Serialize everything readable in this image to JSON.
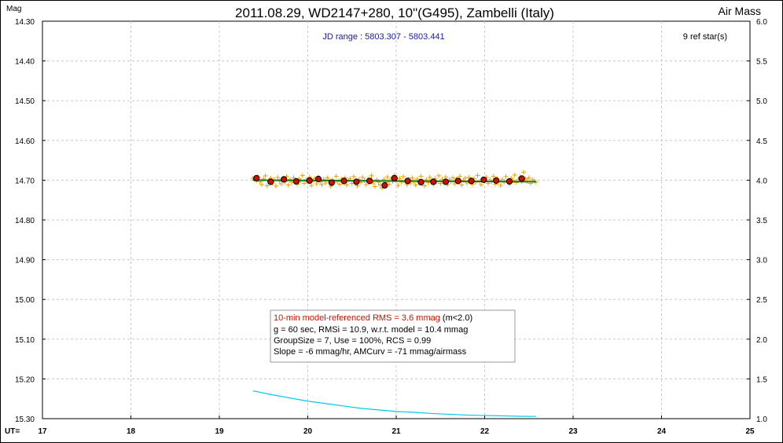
{
  "chart_data": {
    "type": "scatter",
    "title": "2011.08.29, WD2147+280, 10\"(G495), Zambelli (Italy)",
    "ylabel": "Mag",
    "y2label": "Air Mass",
    "xlabel": "UT=",
    "jd_range": "JD range : 5803.307 - 5803.441",
    "ref_stars": "9 ref star(s)",
    "xlim": [
      17,
      25
    ],
    "ylim": [
      14.3,
      15.3
    ],
    "y2lim": [
      1.0,
      6.0
    ],
    "x_ticks": [
      "17",
      "18",
      "19",
      "20",
      "21",
      "22",
      "23",
      "24",
      "25"
    ],
    "y_ticks": [
      "14.30",
      "14.40",
      "14.50",
      "14.60",
      "14.70",
      "14.80",
      "14.90",
      "15.00",
      "15.10",
      "15.20",
      "15.30"
    ],
    "y2_ticks": [
      "6.0",
      "5.5",
      "5.0",
      "4.5",
      "4.0",
      "3.5",
      "3.0",
      "2.5",
      "2.0",
      "1.5",
      "1.0"
    ],
    "grid": true,
    "stats": {
      "line1_red": "10-min model-referenced RMS = 3.6 mmag",
      "line1_black": " (m<2.0)",
      "line2": "g = 60 sec, RMSi = 10.9, w.r.t. model = 10.4 mmag",
      "line3": "GroupSize = 7, Use = 100%, RCS = 0.99",
      "line4": "Slope = -6 mmag/hr, AMCurv = -71 mmag/airmass"
    },
    "series": [
      {
        "kind": "individual",
        "color": "#e8a000",
        "points": [
          [
            19.38,
            14.695
          ],
          [
            19.4,
            14.698
          ],
          [
            19.42,
            14.701
          ],
          [
            19.44,
            14.692
          ],
          [
            19.46,
            14.704
          ],
          [
            19.48,
            14.711
          ],
          [
            19.5,
            14.697
          ],
          [
            19.52,
            14.689
          ],
          [
            19.54,
            14.714
          ],
          [
            19.56,
            14.7
          ],
          [
            19.58,
            14.695
          ],
          [
            19.6,
            14.707
          ],
          [
            19.62,
            14.699
          ],
          [
            19.64,
            14.715
          ],
          [
            19.66,
            14.693
          ],
          [
            19.68,
            14.702
          ],
          [
            19.7,
            14.709
          ],
          [
            19.72,
            14.696
          ],
          [
            19.74,
            14.704
          ],
          [
            19.76,
            14.691
          ],
          [
            19.78,
            14.712
          ],
          [
            19.8,
            14.698
          ],
          [
            19.82,
            14.706
          ],
          [
            19.84,
            14.694
          ],
          [
            19.86,
            14.703
          ],
          [
            19.88,
            14.71
          ],
          [
            19.9,
            14.697
          ],
          [
            19.92,
            14.701
          ],
          [
            19.94,
            14.688
          ],
          [
            19.96,
            14.708
          ],
          [
            19.98,
            14.699
          ],
          [
            20.0,
            14.705
          ],
          [
            20.02,
            14.692
          ],
          [
            20.04,
            14.713
          ],
          [
            20.06,
            14.7
          ],
          [
            20.08,
            14.696
          ],
          [
            20.1,
            14.709
          ],
          [
            20.12,
            14.693
          ],
          [
            20.14,
            14.704
          ],
          [
            20.16,
            14.711
          ],
          [
            20.18,
            14.698
          ],
          [
            20.2,
            14.707
          ],
          [
            20.22,
            14.694
          ],
          [
            20.24,
            14.702
          ],
          [
            20.26,
            14.715
          ],
          [
            20.28,
            14.699
          ],
          [
            20.3,
            14.706
          ],
          [
            20.32,
            14.69
          ],
          [
            20.34,
            14.703
          ],
          [
            20.36,
            14.71
          ],
          [
            20.38,
            14.697
          ],
          [
            20.4,
            14.705
          ],
          [
            20.42,
            14.694
          ],
          [
            20.44,
            14.712
          ],
          [
            20.46,
            14.7
          ],
          [
            20.48,
            14.696
          ],
          [
            20.5,
            14.708
          ],
          [
            20.52,
            14.691
          ],
          [
            20.54,
            14.703
          ],
          [
            20.56,
            14.714
          ],
          [
            20.58,
            14.698
          ],
          [
            20.6,
            14.706
          ],
          [
            20.62,
            14.693
          ],
          [
            20.64,
            14.701
          ],
          [
            20.66,
            14.711
          ],
          [
            20.68,
            14.697
          ],
          [
            20.7,
            14.704
          ],
          [
            20.72,
            14.689
          ],
          [
            20.74,
            14.707
          ],
          [
            20.76,
            14.716
          ],
          [
            20.78,
            14.699
          ],
          [
            20.8,
            14.705
          ],
          [
            20.82,
            14.712
          ],
          [
            20.84,
            14.72
          ],
          [
            20.86,
            14.698
          ],
          [
            20.88,
            14.706
          ],
          [
            20.9,
            14.692
          ],
          [
            20.92,
            14.71
          ],
          [
            20.94,
            14.697
          ],
          [
            20.96,
            14.703
          ],
          [
            20.98,
            14.688
          ],
          [
            21.0,
            14.701
          ],
          [
            21.02,
            14.713
          ],
          [
            21.04,
            14.696
          ],
          [
            21.06,
            14.705
          ],
          [
            21.08,
            14.691
          ],
          [
            21.1,
            14.702
          ],
          [
            21.12,
            14.711
          ],
          [
            21.14,
            14.698
          ],
          [
            21.16,
            14.707
          ],
          [
            21.18,
            14.694
          ],
          [
            21.2,
            14.703
          ],
          [
            21.22,
            14.712
          ],
          [
            21.24,
            14.697
          ],
          [
            21.26,
            14.705
          ],
          [
            21.28,
            14.69
          ],
          [
            21.3,
            14.702
          ],
          [
            21.32,
            14.714
          ],
          [
            21.34,
            14.699
          ],
          [
            21.36,
            14.706
          ],
          [
            21.38,
            14.693
          ],
          [
            21.4,
            14.701
          ],
          [
            21.42,
            14.71
          ],
          [
            21.44,
            14.696
          ],
          [
            21.46,
            14.704
          ],
          [
            21.48,
            14.689
          ],
          [
            21.5,
            14.708
          ],
          [
            21.52,
            14.698
          ],
          [
            21.54,
            14.705
          ],
          [
            21.56,
            14.692
          ],
          [
            21.58,
            14.711
          ],
          [
            21.6,
            14.699
          ],
          [
            21.62,
            14.703
          ],
          [
            21.64,
            14.694
          ],
          [
            21.66,
            14.709
          ],
          [
            21.68,
            14.697
          ],
          [
            21.7,
            14.704
          ],
          [
            21.72,
            14.69
          ],
          [
            21.74,
            14.712
          ],
          [
            21.76,
            14.7
          ],
          [
            21.78,
            14.695
          ],
          [
            21.8,
            14.707
          ],
          [
            21.82,
            14.693
          ],
          [
            21.84,
            14.702
          ],
          [
            21.86,
            14.71
          ],
          [
            21.88,
            14.696
          ],
          [
            21.9,
            14.705
          ],
          [
            21.92,
            14.688
          ],
          [
            21.94,
            14.703
          ],
          [
            21.96,
            14.711
          ],
          [
            21.98,
            14.697
          ],
          [
            22.0,
            14.701
          ],
          [
            22.02,
            14.693
          ],
          [
            22.04,
            14.708
          ],
          [
            22.06,
            14.699
          ],
          [
            22.08,
            14.704
          ],
          [
            22.1,
            14.69
          ],
          [
            22.12,
            14.71
          ],
          [
            22.14,
            14.696
          ],
          [
            22.16,
            14.702
          ],
          [
            22.18,
            14.713
          ],
          [
            22.2,
            14.698
          ],
          [
            22.22,
            14.705
          ],
          [
            22.24,
            14.691
          ],
          [
            22.26,
            14.703
          ],
          [
            22.28,
            14.709
          ],
          [
            22.3,
            14.695
          ],
          [
            22.32,
            14.701
          ],
          [
            22.34,
            14.687
          ],
          [
            22.36,
            14.706
          ],
          [
            22.38,
            14.698
          ],
          [
            22.4,
            14.692
          ],
          [
            22.42,
            14.704
          ],
          [
            22.44,
            14.68
          ],
          [
            22.46,
            14.697
          ],
          [
            22.48,
            14.703
          ],
          [
            22.5,
            14.694
          ],
          [
            22.52,
            14.708
          ],
          [
            22.54,
            14.699
          ],
          [
            22.56,
            14.702
          ],
          [
            22.58,
            14.705
          ]
        ]
      },
      {
        "kind": "group_means",
        "color": "#cc1100",
        "points": [
          [
            19.42,
            14.695
          ],
          [
            19.58,
            14.704
          ],
          [
            19.73,
            14.698
          ],
          [
            19.87,
            14.703
          ],
          [
            20.02,
            14.701
          ],
          [
            20.12,
            14.697
          ],
          [
            20.27,
            14.706
          ],
          [
            20.41,
            14.702
          ],
          [
            20.55,
            14.704
          ],
          [
            20.7,
            14.702
          ],
          [
            20.87,
            14.713
          ],
          [
            20.98,
            14.695
          ],
          [
            21.13,
            14.702
          ],
          [
            21.28,
            14.705
          ],
          [
            21.42,
            14.704
          ],
          [
            21.56,
            14.704
          ],
          [
            21.7,
            14.702
          ],
          [
            21.85,
            14.702
          ],
          [
            21.99,
            14.699
          ],
          [
            22.13,
            14.701
          ],
          [
            22.28,
            14.703
          ],
          [
            22.42,
            14.696
          ]
        ]
      }
    ],
    "model_line": {
      "color": "#1a7a1a",
      "x": [
        19.38,
        22.58
      ],
      "y": [
        14.7,
        14.704
      ]
    },
    "airmass_curve": {
      "color": "#00c8e8",
      "points": [
        [
          19.38,
          1.35
        ],
        [
          19.6,
          1.3
        ],
        [
          19.8,
          1.26
        ],
        [
          20.0,
          1.22
        ],
        [
          20.2,
          1.19
        ],
        [
          20.4,
          1.16
        ],
        [
          20.6,
          1.13
        ],
        [
          20.8,
          1.11
        ],
        [
          21.0,
          1.09
        ],
        [
          21.2,
          1.08
        ],
        [
          21.4,
          1.065
        ],
        [
          21.6,
          1.055
        ],
        [
          21.8,
          1.045
        ],
        [
          22.0,
          1.04
        ],
        [
          22.2,
          1.035
        ],
        [
          22.4,
          1.03
        ],
        [
          22.58,
          1.028
        ]
      ]
    }
  }
}
